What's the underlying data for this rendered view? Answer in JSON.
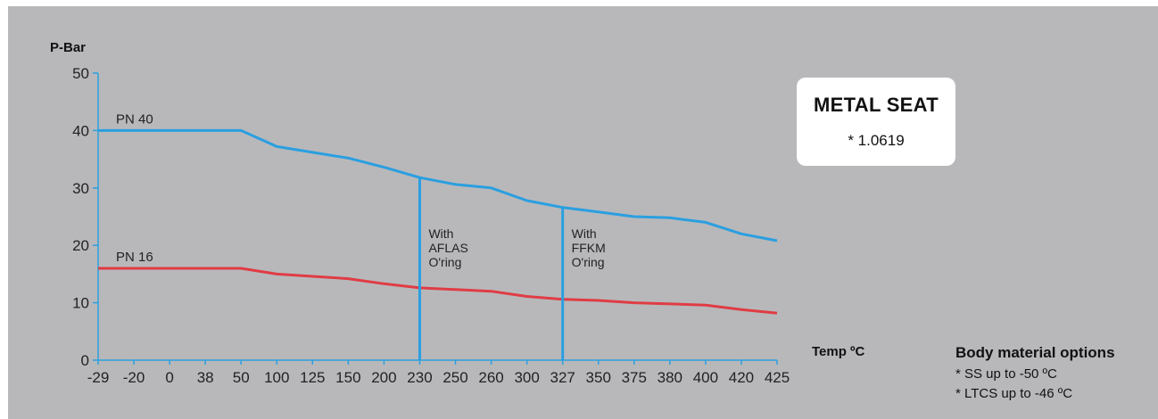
{
  "chart_data": {
    "type": "line",
    "ylabel": "P-Bar",
    "xlabel": "Temp ºC",
    "ylim": [
      0,
      50
    ],
    "yticks": [
      0,
      10,
      20,
      30,
      40,
      50
    ],
    "categories": [
      "-29",
      "-20",
      "0",
      "38",
      "50",
      "100",
      "125",
      "150",
      "200",
      "230",
      "250",
      "260",
      "300",
      "327",
      "350",
      "375",
      "380",
      "400",
      "420",
      "425"
    ],
    "series": [
      {
        "name": "PN 40",
        "color": "#2a9fe0",
        "values": [
          40,
          40,
          40,
          40,
          40,
          37.2,
          36.2,
          35.2,
          33.6,
          31.8,
          30.6,
          30,
          27.8,
          26.6,
          25.8,
          25,
          24.8,
          24,
          22,
          20.8
        ]
      },
      {
        "name": "PN 16",
        "color": "#e03c44",
        "values": [
          16,
          16,
          16,
          16,
          16,
          15,
          14.6,
          14.2,
          13.3,
          12.6,
          12.3,
          12,
          11.1,
          10.6,
          10.4,
          10,
          9.8,
          9.6,
          8.8,
          8.2
        ]
      }
    ],
    "markers": [
      {
        "category_index": 9,
        "category": "230",
        "label_lines": [
          "With",
          "AFLAS",
          "O'ring"
        ]
      },
      {
        "category_index": 13,
        "category": "327",
        "label_lines": [
          "With",
          "FFKM",
          "O'ring"
        ]
      }
    ],
    "axis_color": "#2a9fe0"
  },
  "info_box": {
    "title": "METAL SEAT",
    "subtitle": "* 1.0619"
  },
  "body_material": {
    "title": "Body material options",
    "items": [
      "* SS up to -50 ºC",
      "* LTCS up to -46 ºC"
    ]
  }
}
